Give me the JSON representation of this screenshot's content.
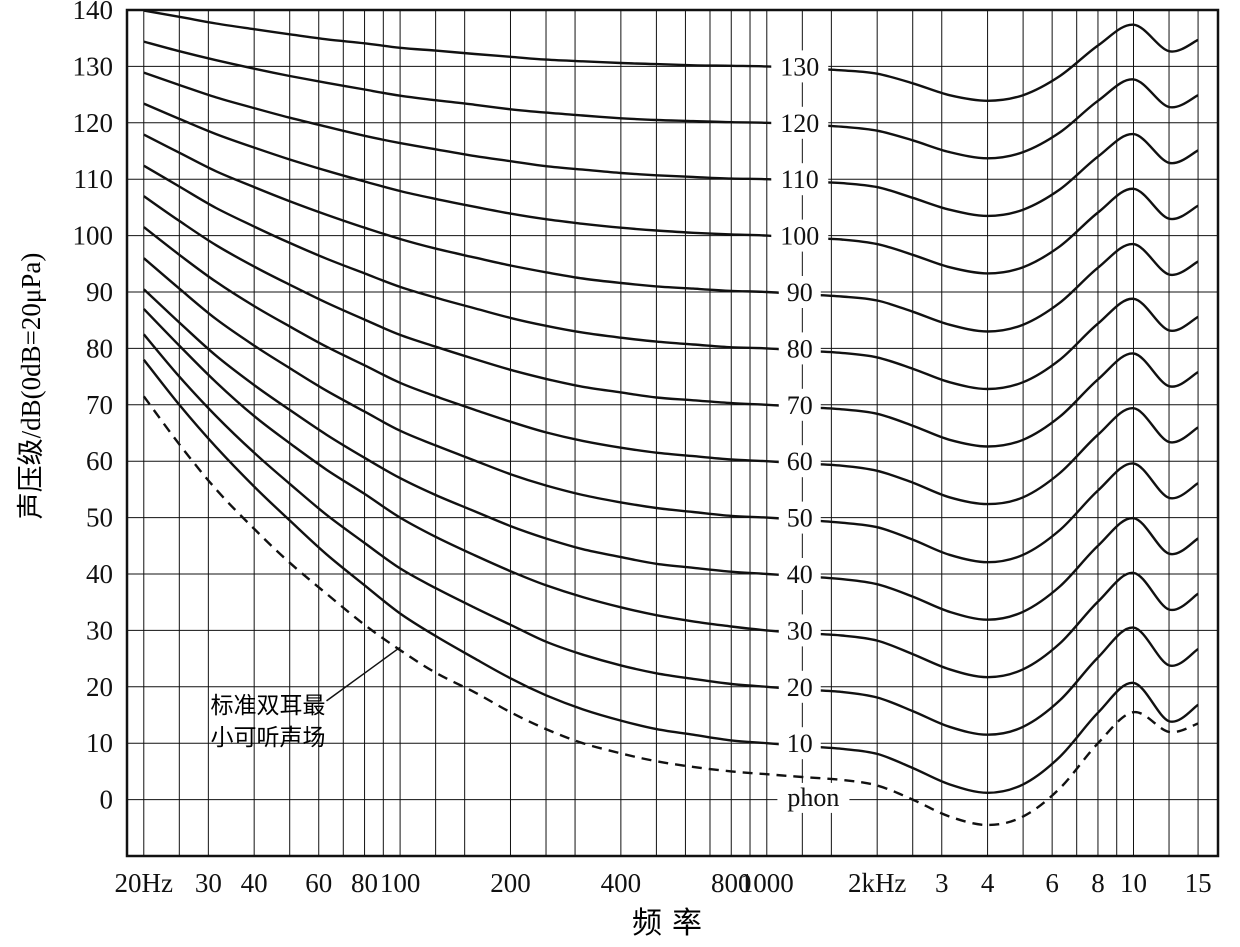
{
  "colors": {
    "ink": "#111111",
    "bg": "#ffffff"
  },
  "chart_data": {
    "type": "line",
    "title": "",
    "xlabel": "频率",
    "ylabel": "声压级/dB(0dB=20μPa)",
    "x_scale": "log",
    "xlim": [
      18,
      17000
    ],
    "ylim": [
      -10,
      140
    ],
    "grid": "on",
    "legend_position": "inline-curve-labels",
    "unit_label": {
      "text": "phon",
      "f": 1340,
      "db": 0.3
    },
    "curve_label_f": 1230,
    "y_ticks": [
      0,
      10,
      20,
      30,
      40,
      50,
      60,
      70,
      80,
      90,
      100,
      110,
      120,
      130,
      140
    ],
    "x_ticks": [
      {
        "f": 20,
        "label": "20Hz"
      },
      {
        "f": 30,
        "label": "30"
      },
      {
        "f": 40,
        "label": "40"
      },
      {
        "f": 60,
        "label": "60"
      },
      {
        "f": 80,
        "label": "80"
      },
      {
        "f": 100,
        "label": "100"
      },
      {
        "f": 200,
        "label": "200"
      },
      {
        "f": 400,
        "label": "400"
      },
      {
        "f": 800,
        "label": "800"
      },
      {
        "f": 1000,
        "label": "1000"
      },
      {
        "f": 2000,
        "label": "2kHz"
      },
      {
        "f": 3000,
        "label": "3"
      },
      {
        "f": 4000,
        "label": "4"
      },
      {
        "f": 6000,
        "label": "6"
      },
      {
        "f": 8000,
        "label": "8"
      },
      {
        "f": 10000,
        "label": "10"
      },
      {
        "f": 15000,
        "label": "15"
      }
    ],
    "frequencies": [
      20,
      25,
      31.5,
      40,
      50,
      63,
      80,
      100,
      125,
      160,
      200,
      250,
      315,
      400,
      500,
      630,
      800,
      1000,
      1250,
      1600,
      2000,
      2500,
      3150,
      4000,
      5000,
      6300,
      8000,
      10000,
      12500,
      15000
    ],
    "series": [
      {
        "name": "130",
        "phon": 130,
        "values": [
          139.9,
          138.8,
          137.6,
          136.6,
          135.7,
          134.8,
          134.1,
          133.3,
          132.8,
          132.2,
          131.7,
          131.2,
          130.9,
          130.6,
          130.4,
          130.2,
          130.1,
          130,
          129.7,
          129.3,
          128.7,
          127,
          124.9,
          123.9,
          124.9,
          128.3,
          133.7,
          137.4,
          132.7,
          134.7
        ]
      },
      {
        "name": "120",
        "phon": 120,
        "values": [
          134.4,
          132.7,
          131.1,
          129.6,
          128.3,
          127.1,
          125.9,
          124.8,
          124,
          123.2,
          122.4,
          121.8,
          121.3,
          120.8,
          120.5,
          120.3,
          120.1,
          120,
          119.7,
          119.3,
          118.6,
          116.9,
          114.8,
          113.7,
          114.8,
          118.3,
          123.9,
          127.7,
          122.8,
          124.9
        ]
      },
      {
        "name": "110",
        "phon": 110,
        "values": [
          128.9,
          126.7,
          124.5,
          122.6,
          120.9,
          119.3,
          117.7,
          116.4,
          115.3,
          114.1,
          113.2,
          112.3,
          111.7,
          111.1,
          110.7,
          110.4,
          110.1,
          110,
          109.6,
          109.3,
          108.6,
          106.7,
          104.6,
          103.5,
          104.6,
          108.2,
          114,
          118,
          112.9,
          115.1
        ]
      },
      {
        "name": "100",
        "phon": 100,
        "values": [
          123.4,
          120.7,
          118,
          115.6,
          113.5,
          111.5,
          109.6,
          107.9,
          106.5,
          105.1,
          103.9,
          102.9,
          102.1,
          101.4,
          100.9,
          100.5,
          100.2,
          100,
          99.6,
          99.3,
          98.5,
          96.6,
          94.4,
          93.3,
          94.4,
          98.1,
          104.1,
          108.3,
          103,
          105.3
        ]
      },
      {
        "name": "90",
        "phon": 90,
        "values": [
          117.9,
          114.7,
          111.4,
          108.6,
          106.1,
          103.7,
          101.4,
          99.4,
          97.7,
          96.1,
          94.7,
          93.5,
          92.4,
          91.6,
          91,
          90.6,
          90.2,
          90,
          89.6,
          89.2,
          88.5,
          86.5,
          84.2,
          83,
          84.2,
          88.1,
          94.3,
          98.5,
          93.1,
          95.4
        ]
      },
      {
        "name": "80",
        "phon": 80,
        "values": [
          112.4,
          108.7,
          104.9,
          101.6,
          98.7,
          95.9,
          93.3,
          90.9,
          89,
          87.1,
          85.4,
          84,
          82.8,
          81.9,
          81.2,
          80.7,
          80.2,
          80,
          79.6,
          79.2,
          78.4,
          76.4,
          74,
          72.8,
          74,
          78,
          84.4,
          88.8,
          83.2,
          85.6
        ]
      },
      {
        "name": "70",
        "phon": 70,
        "values": [
          107,
          102.6,
          98.3,
          94.5,
          91.3,
          88.1,
          85.1,
          82.4,
          80.3,
          78.1,
          76.2,
          74.6,
          73.2,
          72.2,
          71.3,
          70.8,
          70.3,
          70,
          69.6,
          69.2,
          68.4,
          66.3,
          63.8,
          62.6,
          63.8,
          67.9,
          74.5,
          79.1,
          73.3,
          75.8
        ]
      },
      {
        "name": "60",
        "phon": 60,
        "values": [
          101.5,
          96.6,
          91.8,
          87.5,
          83.9,
          80.3,
          77,
          73.9,
          71.5,
          69.1,
          67,
          65.1,
          63.6,
          62.4,
          61.5,
          60.9,
          60.3,
          60,
          59.6,
          59.2,
          58.3,
          56.2,
          53.6,
          52.4,
          53.6,
          57.9,
          64.7,
          69.4,
          63.4,
          66
        ]
      },
      {
        "name": "50",
        "phon": 50,
        "values": [
          96,
          90.6,
          85.2,
          80.5,
          76.5,
          72.5,
          68.8,
          65.4,
          62.8,
          60.1,
          57.7,
          55.7,
          54,
          52.7,
          51.7,
          51,
          50.3,
          50,
          49.6,
          49.1,
          48.3,
          46.1,
          43.4,
          42.1,
          43.4,
          47.8,
          54.8,
          59.6,
          53.5,
          56.1
        ]
      },
      {
        "name": "40",
        "phon": 40,
        "values": [
          90.5,
          84.6,
          78.7,
          73.5,
          69.1,
          64.7,
          60.6,
          57,
          54,
          51.1,
          48.5,
          46.3,
          44.4,
          43,
          41.8,
          41.1,
          40.4,
          40,
          39.6,
          39.1,
          38.2,
          36,
          33.3,
          31.9,
          33.3,
          37.8,
          45,
          49.9,
          43.6,
          46.3
        ]
      },
      {
        "name": "30",
        "phon": 30,
        "values": [
          87,
          80.5,
          74,
          68,
          63.2,
          58.5,
          54.2,
          50,
          46.6,
          43.3,
          40.5,
          38,
          35.9,
          34.1,
          32.7,
          31.6,
          30.7,
          30,
          29.5,
          29.1,
          28.2,
          25.8,
          23.1,
          21.7,
          23.1,
          27.7,
          35.1,
          40.2,
          33.7,
          36.5
        ]
      },
      {
        "name": "20",
        "phon": 20,
        "values": [
          82.5,
          75,
          68,
          61.5,
          56,
          50.5,
          45.5,
          41,
          37.5,
          34,
          31,
          28,
          25.7,
          23.8,
          22.4,
          21.4,
          20.5,
          20,
          19.5,
          19.1,
          18.1,
          15.7,
          12.9,
          11.5,
          12.9,
          17.6,
          25.2,
          30.5,
          23.8,
          26.7
        ]
      },
      {
        "name": "10",
        "phon": 10,
        "values": [
          78,
          70,
          62.5,
          55.5,
          49.5,
          43.5,
          38,
          33,
          29,
          25,
          21.5,
          18.5,
          16,
          14,
          12.5,
          11.5,
          10.5,
          10,
          9.5,
          9,
          8.1,
          5.6,
          2.7,
          1.2,
          2.7,
          7.6,
          15.4,
          20.7,
          13.9,
          16.8
        ]
      }
    ],
    "threshold": {
      "name": "标准双耳最小可听声场",
      "style": "dashed",
      "values": [
        71.5,
        63,
        55,
        48,
        42,
        36.5,
        31,
        26.5,
        22.5,
        19,
        15.5,
        12.5,
        10,
        8.2,
        6.8,
        5.8,
        5,
        4.5,
        4,
        3.5,
        2.5,
        0,
        -3,
        -4.5,
        -3,
        2,
        10,
        15.5,
        12,
        13.5
      ]
    },
    "annotation": {
      "line1": "标准双耳最",
      "line2": "小可听声场",
      "leader": {
        "from_f": 63,
        "from_db": 17.5,
        "to_f": 100,
        "to_db": 27
      }
    }
  }
}
